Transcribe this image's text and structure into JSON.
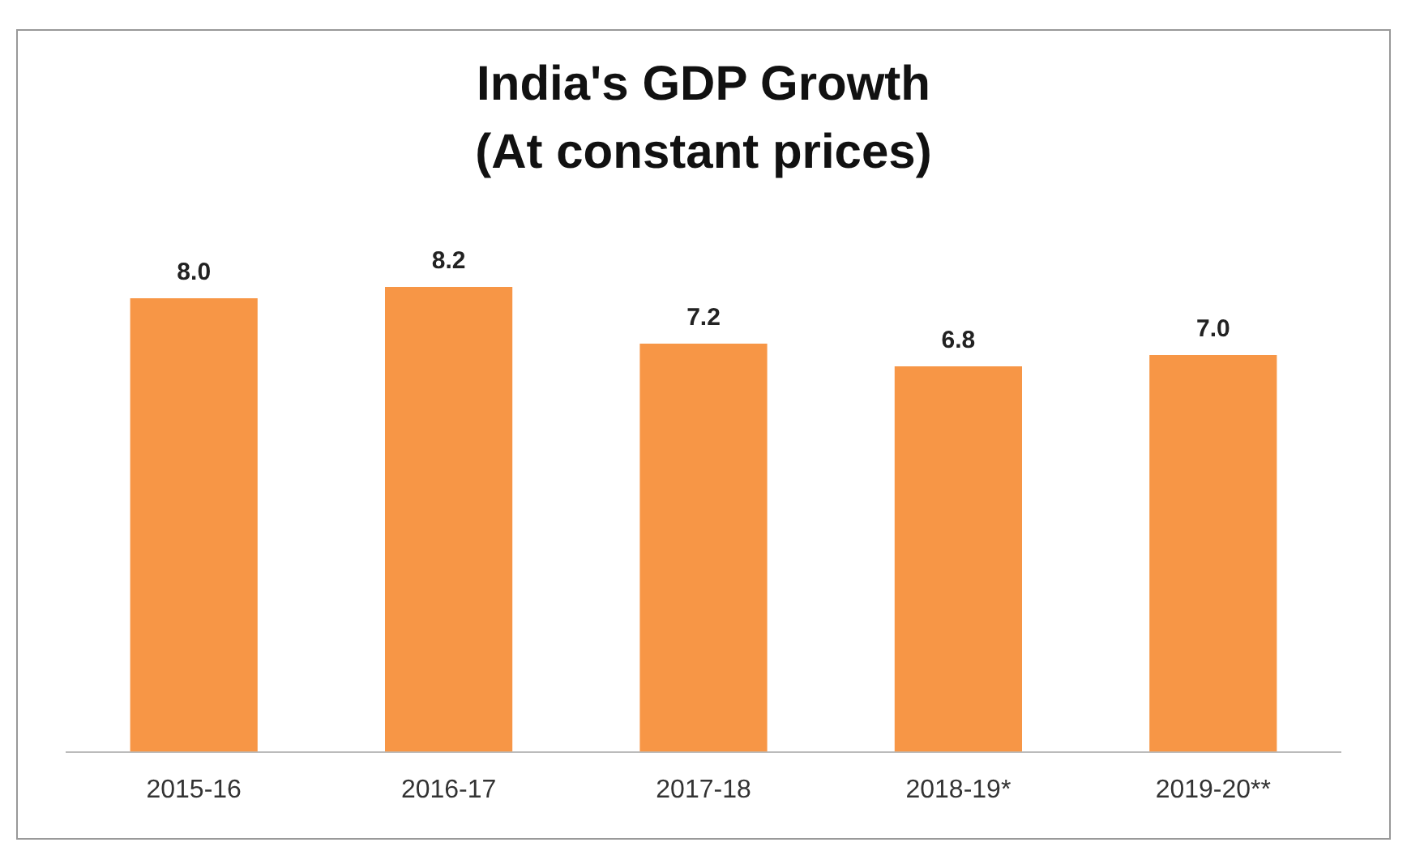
{
  "chart_data": {
    "type": "bar",
    "title": "India's GDP Growth",
    "subtitle": "(At constant prices)",
    "categories": [
      "2015-16",
      "2016-17",
      "2017-18",
      "2018-19*",
      "2019-20**"
    ],
    "values": [
      8.0,
      8.2,
      7.2,
      6.8,
      7.0
    ],
    "value_labels": [
      "8.0",
      "8.2",
      "7.2",
      "6.8",
      "7.0"
    ],
    "color": "#f79646",
    "grid": false,
    "legend": false
  }
}
